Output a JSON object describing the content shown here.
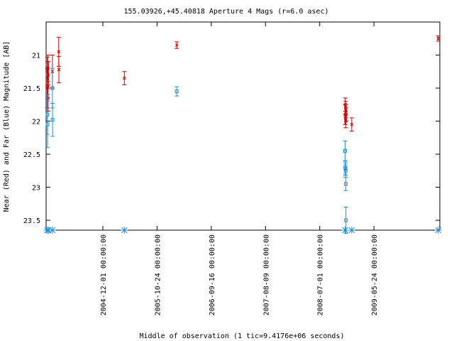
{
  "chart_data": {
    "type": "scatter",
    "title": "155.03926,+45.40818   Aperture 4 Mags (r=6.0 asec)",
    "xlabel": "Middle of observation (1 tic=9.4176e+06 seconds)",
    "ylabel": "Near (Red) and Far (Blue) Magnitude [AB]",
    "x_axis": "date",
    "xlim": [
      "2003-12-25",
      "2010-06-25"
    ],
    "ylim": [
      21.25,
      18.1
    ],
    "y_inverted": true,
    "y_ticks": [
      {
        "value": 18.6,
        "label": "21"
      },
      {
        "value": 19.1,
        "label": "21.5"
      },
      {
        "value": 19.6,
        "label": "22"
      },
      {
        "value": 20.1,
        "label": "22.5"
      },
      {
        "value": 20.6,
        "label": "23"
      },
      {
        "value": 21.1,
        "label": "23.5"
      }
    ],
    "x_ticks": [
      {
        "value": "2004-12-01",
        "label": "2004-12-01 00:00:00"
      },
      {
        "value": "2005-10-24",
        "label": "2005-10-24 00:00:00"
      },
      {
        "value": "2006-09-16",
        "label": "2006-09-16 00:00:00"
      },
      {
        "value": "2007-08-09",
        "label": "2007-08-09 00:00:00"
      },
      {
        "value": "2008-07-01",
        "label": "2008-07-01 00:00:00"
      },
      {
        "value": "2009-05-24",
        "label": "2009-05-24 00:00:00"
      }
    ],
    "grid": false,
    "series": [
      {
        "color": "#cc0000",
        "marker": "x",
        "points": [
          {
            "x": "2004-01-01",
            "y": 19.1,
            "err": 0.3
          },
          {
            "x": "2004-01-02",
            "y": 18.85,
            "err": 0.22
          },
          {
            "x": "2004-01-03",
            "y": 18.95,
            "err": 0.25
          },
          {
            "x": "2004-01-05",
            "y": 18.8,
            "err": 0.2
          },
          {
            "x": "2004-01-06",
            "y": 19.25,
            "err": 0.2
          },
          {
            "x": "2004-01-08",
            "y": 18.9,
            "err": 0.2
          },
          {
            "x": "2004-02-01",
            "y": 18.85,
            "err": 0.25
          },
          {
            "x": "2004-03-10",
            "y": 18.55,
            "err": 0.22
          },
          {
            "x": "2004-03-11",
            "y": 18.82,
            "err": 0.2
          },
          {
            "x": "2005-04-10",
            "y": 18.95,
            "err": 0.1
          },
          {
            "x": "2006-02-20",
            "y": 18.45,
            "err": 0.05
          },
          {
            "x": "2008-12-01",
            "y": 19.5,
            "err": 0.15
          },
          {
            "x": "2008-12-02",
            "y": 19.35,
            "err": 0.1
          },
          {
            "x": "2008-12-03",
            "y": 19.55,
            "err": 0.1
          },
          {
            "x": "2008-12-04",
            "y": 19.4,
            "err": 0.1
          },
          {
            "x": "2008-12-05",
            "y": 19.6,
            "err": 0.1
          },
          {
            "x": "2008-12-06",
            "y": 19.45,
            "err": 0.1
          },
          {
            "x": "2008-12-07",
            "y": 19.5,
            "err": 0.1
          },
          {
            "x": "2009-01-10",
            "y": 19.65,
            "err": 0.1
          },
          {
            "x": "2010-06-15",
            "y": 18.35,
            "err": 0.04
          }
        ]
      },
      {
        "color": "#1f8fd6",
        "marker": "square",
        "points": [
          {
            "x": "2004-01-02",
            "y": 19.5,
            "err": 0.3
          },
          {
            "x": "2004-01-03",
            "y": 19.65,
            "err": 0.35
          },
          {
            "x": "2004-02-01",
            "y": 19.1,
            "err": 0.3
          },
          {
            "x": "2004-02-02",
            "y": 19.58,
            "err": 0.25
          },
          {
            "x": "2006-02-20",
            "y": 19.15,
            "err": 0.07
          },
          {
            "x": "2008-12-01",
            "y": 20.05,
            "err": 0.15
          },
          {
            "x": "2008-12-02",
            "y": 20.3,
            "err": 0.1
          },
          {
            "x": "2008-12-03",
            "y": 20.32,
            "err": 0.1
          },
          {
            "x": "2008-12-04",
            "y": 20.35,
            "err": 0.1
          },
          {
            "x": "2008-12-05",
            "y": 20.55,
            "err": 0.1
          },
          {
            "x": "2008-12-06",
            "y": 21.1,
            "err": 0.2
          }
        ]
      }
    ],
    "observation_markers": [
      "2004-01-01",
      "2004-01-08",
      "2004-02-01",
      "2005-04-10",
      "2008-12-01",
      "2009-01-10",
      "2010-06-15"
    ]
  }
}
